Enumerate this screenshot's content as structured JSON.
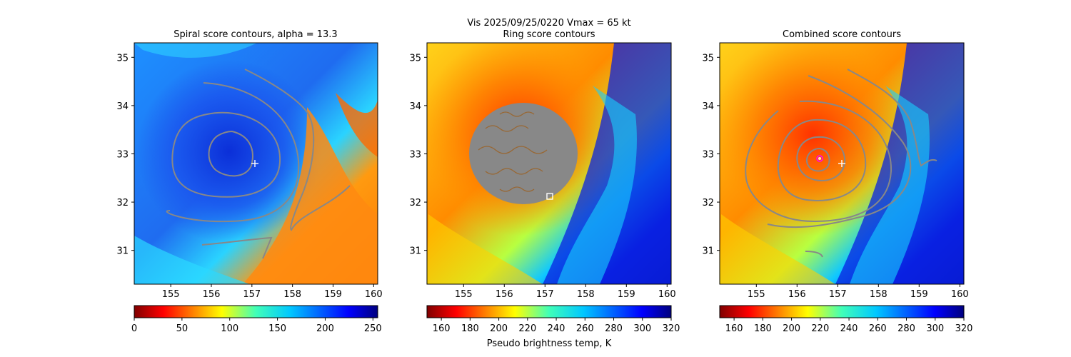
{
  "figure": {
    "suptitle_line1": "Vis  2025/09/25/0220    Vmax = 65 kt",
    "colorbar_label": "Pseudo brightness temp, K"
  },
  "chart_data": [
    {
      "type": "heatmap",
      "title": "Spiral score contours, alpha = 13.3",
      "xlim": [
        154.1,
        160.1
      ],
      "ylim": [
        30.3,
        35.3
      ],
      "xticks": [
        155,
        156,
        157,
        158,
        159,
        160
      ],
      "yticks": [
        31,
        32,
        33,
        34,
        35
      ],
      "colormap": "jet_r",
      "colorbar": {
        "range": [
          0,
          255
        ],
        "ticks": [
          0,
          50,
          100,
          150,
          200,
          250
        ]
      },
      "contour_color": "#888888",
      "markers": [
        {
          "symbol": "plus",
          "lon": 157.1,
          "lat": 32.8,
          "color": "#ffffff"
        }
      ]
    },
    {
      "type": "heatmap",
      "title": "Ring score contours",
      "xlim": [
        154.1,
        160.1
      ],
      "ylim": [
        30.3,
        35.3
      ],
      "xticks": [
        155,
        156,
        157,
        158,
        159,
        160
      ],
      "yticks": [
        31,
        32,
        33,
        34,
        35
      ],
      "colormap": "jet_r",
      "colorbar": {
        "range": [
          150,
          320
        ],
        "ticks": [
          160,
          180,
          200,
          220,
          240,
          260,
          280,
          300,
          320
        ]
      },
      "contour_color": "#888888",
      "ring_region": {
        "center_lon": 156.5,
        "center_lat": 32.9,
        "radius_deg": 1.05
      },
      "markers": [
        {
          "symbol": "square",
          "lon": 157.1,
          "lat": 32.1,
          "color": "#ffffff"
        }
      ]
    },
    {
      "type": "heatmap",
      "title": "Combined score contours",
      "xlim": [
        154.1,
        160.1
      ],
      "ylim": [
        30.3,
        35.3
      ],
      "xticks": [
        155,
        156,
        157,
        158,
        159,
        160
      ],
      "yticks": [
        31,
        32,
        33,
        34,
        35
      ],
      "colormap": "jet_r",
      "colorbar": {
        "range": [
          150,
          320
        ],
        "ticks": [
          160,
          180,
          200,
          220,
          240,
          260,
          280,
          300,
          320
        ]
      },
      "contour_color": "#888888",
      "markers": [
        {
          "symbol": "circle",
          "lon": 156.6,
          "lat": 32.9,
          "color": "#ff00ff"
        },
        {
          "symbol": "plus",
          "lon": 157.1,
          "lat": 32.8,
          "color": "#ffffff"
        }
      ]
    }
  ]
}
